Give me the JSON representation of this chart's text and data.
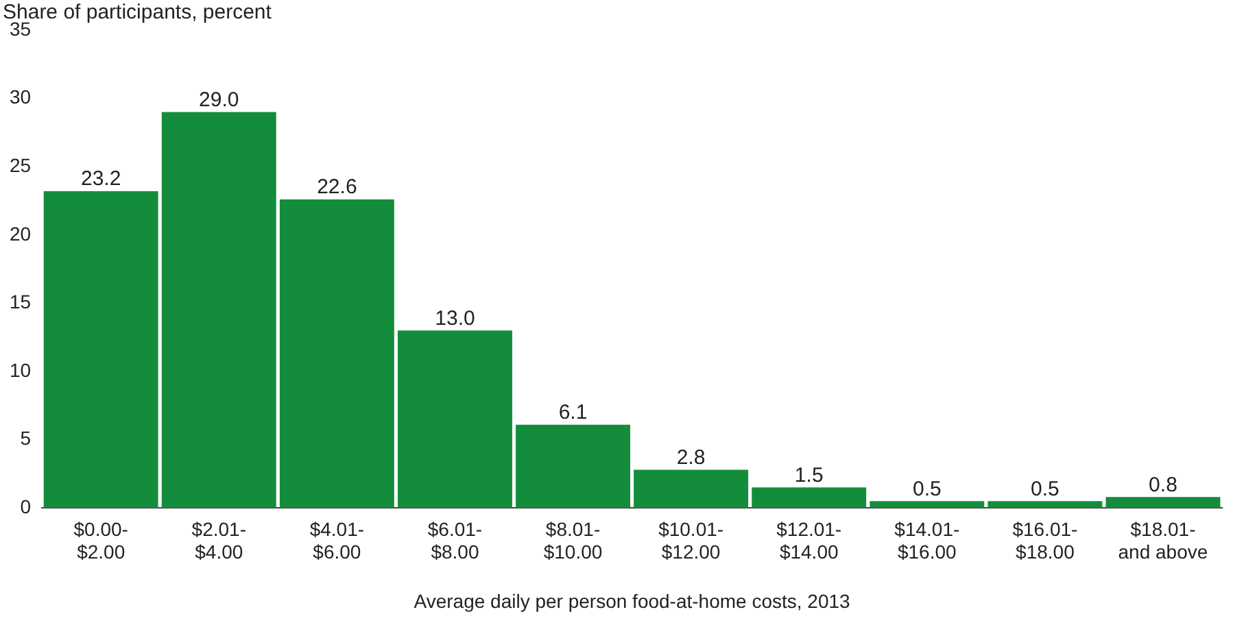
{
  "chart_data": {
    "type": "bar",
    "ylabel": "Share of participants, percent",
    "xlabel": "Average daily per person food-at-home costs, 2013",
    "categories": [
      "$0.00- $2.00",
      "$2.01- $4.00",
      "$4.01- $6.00",
      "$6.01- $8.00",
      "$8.01- $10.00",
      "$10.01- $12.00",
      "$12.01- $14.00",
      "$14.01- $16.00",
      "$16.01- $18.00",
      "$18.01- and above"
    ],
    "values": [
      23.2,
      29.0,
      22.6,
      13.0,
      6.1,
      2.8,
      1.5,
      0.5,
      0.5,
      0.8
    ],
    "value_labels": [
      "23.2",
      "29.0",
      "22.6",
      "13.0",
      "6.1",
      "2.8",
      "1.5",
      "0.5",
      "0.5",
      "0.8"
    ],
    "color": "#138d3b",
    "ylim": [
      0,
      35
    ],
    "yticks": [
      0,
      5,
      10,
      15,
      20,
      25,
      30,
      35
    ],
    "grid": false,
    "legend": false
  }
}
